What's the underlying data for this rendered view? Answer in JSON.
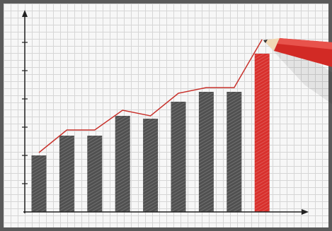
{
  "chart_data": {
    "type": "bar",
    "categories": [
      null,
      null,
      null,
      null,
      null,
      null,
      null,
      null,
      null
    ],
    "values": [
      2,
      2.7,
      2.7,
      3.4,
      3.3,
      3.9,
      4.25,
      4.25,
      5.6
    ],
    "colors": [
      "#505050",
      "#505050",
      "#505050",
      "#505050",
      "#505050",
      "#505050",
      "#505050",
      "#505050",
      "#d8302c"
    ],
    "line": {
      "color": "#c8322c",
      "values": [
        2.1,
        2.9,
        2.9,
        3.6,
        3.4,
        4.2,
        4.4,
        4.4,
        6.1
      ]
    },
    "ylim": [
      0,
      7
    ],
    "yticks": [
      1,
      2,
      3,
      4,
      5,
      6
    ]
  }
}
